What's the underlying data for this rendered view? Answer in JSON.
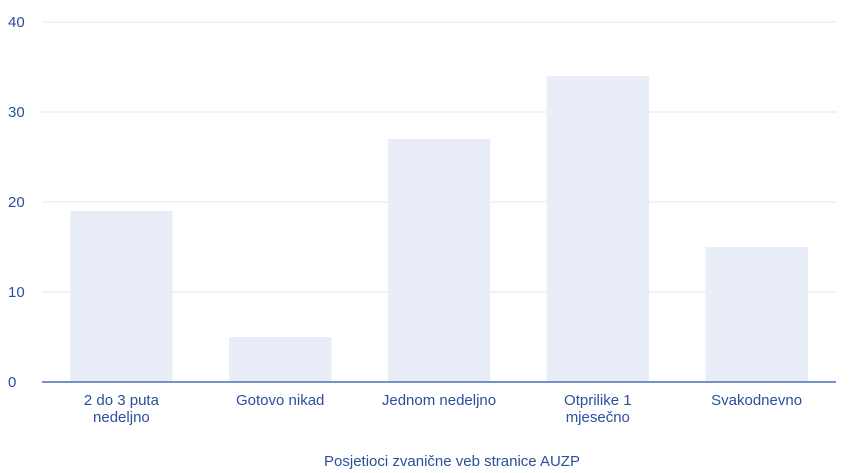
{
  "colors": {
    "bar": "#e8edf7",
    "axis": "#4a6fb0",
    "grid": "#e0e4ea",
    "text": "#2b4f9e"
  },
  "chart_data": {
    "type": "bar",
    "categories": [
      [
        "2 do 3 puta",
        "nedeljno"
      ],
      [
        "Gotovo nikad"
      ],
      [
        "Jednom nedeljno"
      ],
      [
        "Otprilike 1",
        "mjesečno"
      ],
      [
        "Svakodnevno"
      ]
    ],
    "values": [
      19,
      5,
      27,
      34,
      15
    ],
    "xlabel": "Posjetioci zvanične veb stranice AUZP",
    "ylabel": "",
    "ylim": [
      0,
      40
    ],
    "yticks": [
      0,
      10,
      20,
      30,
      40
    ],
    "grid": true,
    "legend": "none"
  }
}
